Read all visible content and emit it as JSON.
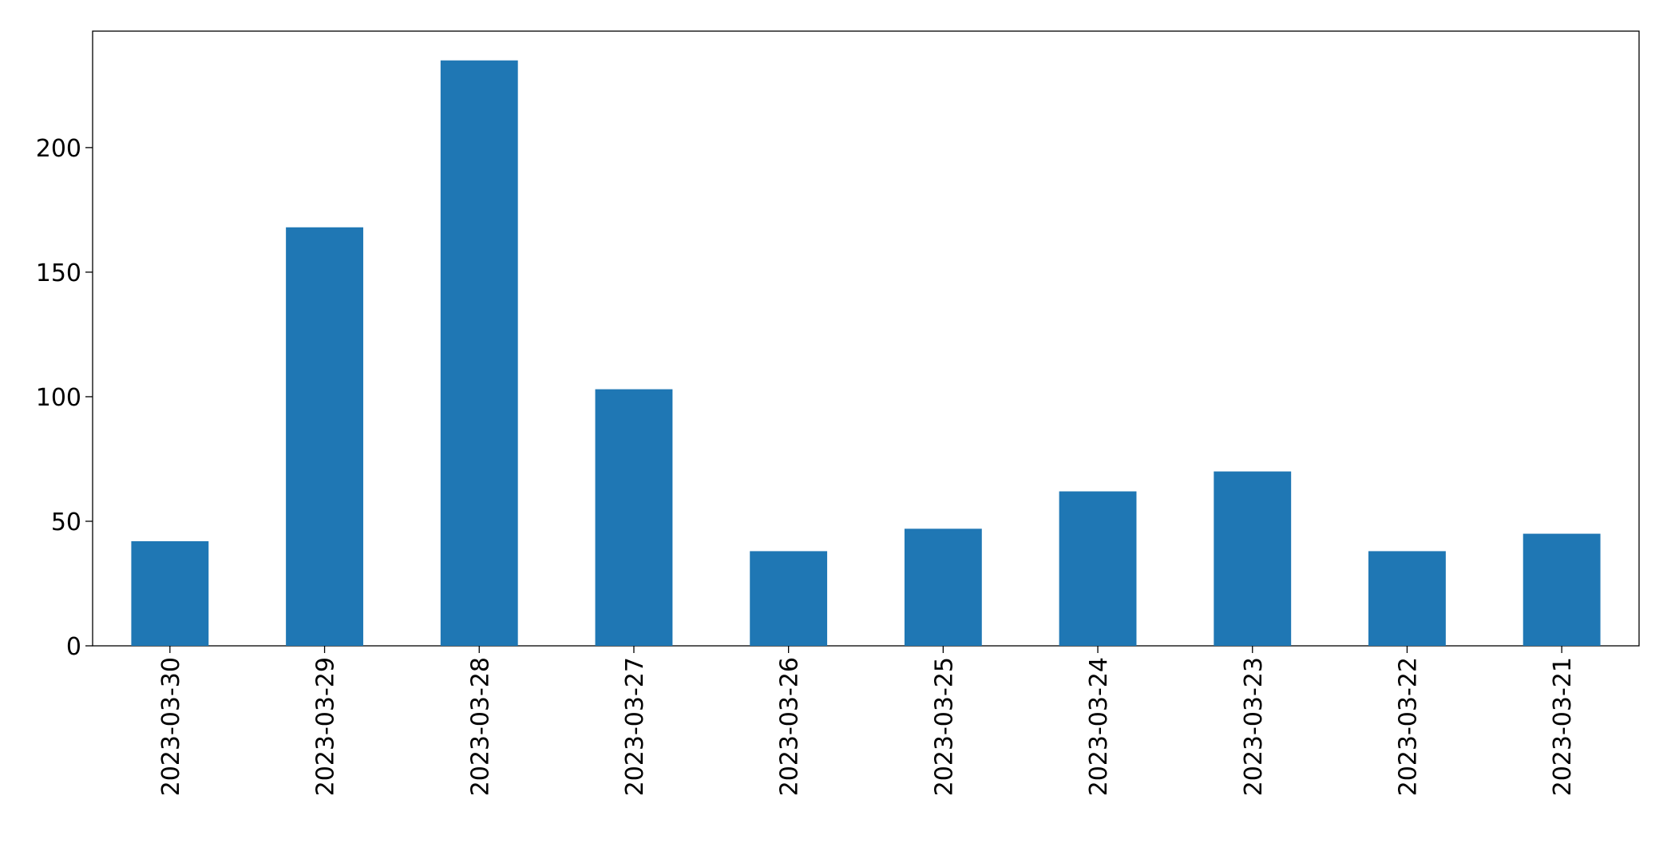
{
  "chart_data": {
    "type": "bar",
    "categories": [
      "2023-03-30",
      "2023-03-29",
      "2023-03-28",
      "2023-03-27",
      "2023-03-26",
      "2023-03-25",
      "2023-03-24",
      "2023-03-23",
      "2023-03-22",
      "2023-03-21"
    ],
    "values": [
      42,
      168,
      235,
      103,
      38,
      47,
      62,
      70,
      38,
      45
    ],
    "color": "#1f77b4",
    "ylim": [
      0,
      246.75
    ],
    "yticks": [
      0,
      50,
      100,
      150,
      200
    ],
    "grid": false
  }
}
